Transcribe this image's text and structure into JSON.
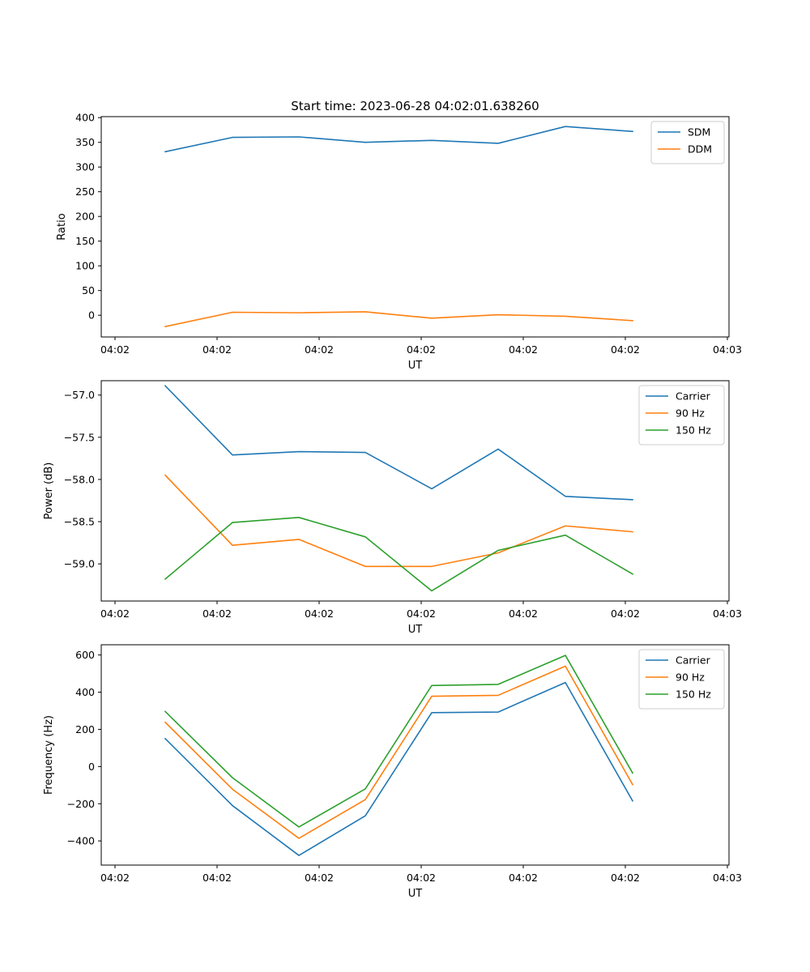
{
  "figure": {
    "title": "Start time: 2023-06-28 04:02:01.638260"
  },
  "colors": {
    "blue": "#1f77b4",
    "orange": "#ff7f0e",
    "green": "#2ca02c"
  },
  "chart_data": [
    {
      "type": "line",
      "title": "Start time: 2023-06-28 04:02:01.638260",
      "xlabel": "UT",
      "ylabel": "Ratio",
      "x_tick_labels": [
        "04:02",
        "04:02",
        "04:02",
        "04:02",
        "04:02",
        "04:02",
        "04:03"
      ],
      "y_ticks": [
        0,
        50,
        100,
        150,
        200,
        250,
        300,
        350,
        400
      ],
      "y_tick_labels": [
        "0",
        "50",
        "100",
        "150",
        "200",
        "250",
        "300",
        "350",
        "400"
      ],
      "ylim": [
        -44,
        402
      ],
      "grid": false,
      "legend": "top-right",
      "series": [
        {
          "name": "SDM",
          "color": "#1f77b4",
          "values": [
            331,
            360,
            361,
            350,
            354,
            348,
            382,
            372
          ]
        },
        {
          "name": "DDM",
          "color": "#ff7f0e",
          "values": [
            -23,
            6,
            5,
            7,
            -6,
            1,
            -2,
            -11
          ]
        }
      ]
    },
    {
      "type": "line",
      "xlabel": "UT",
      "ylabel": "Power (dB)",
      "x_tick_labels": [
        "04:02",
        "04:02",
        "04:02",
        "04:02",
        "04:02",
        "04:02",
        "04:03"
      ],
      "y_ticks": [
        -59.0,
        -58.5,
        -58.0,
        -57.5,
        -57.0
      ],
      "y_tick_labels": [
        "−59.0",
        "−58.5",
        "−58.0",
        "−57.5",
        "−57.0"
      ],
      "ylim": [
        -59.44,
        -56.83
      ],
      "grid": false,
      "legend": "top-right",
      "series": [
        {
          "name": "Carrier",
          "color": "#1f77b4",
          "values": [
            -56.89,
            -57.71,
            -57.67,
            -57.68,
            -58.11,
            -57.64,
            -58.2,
            -58.24
          ]
        },
        {
          "name": "90 Hz",
          "color": "#ff7f0e",
          "values": [
            -57.95,
            -58.78,
            -58.71,
            -59.03,
            -59.03,
            -58.87,
            -58.55,
            -58.62
          ]
        },
        {
          "name": "150 Hz",
          "color": "#2ca02c",
          "values": [
            -59.18,
            -58.51,
            -58.45,
            -58.68,
            -59.32,
            -58.84,
            -58.66,
            -59.12
          ]
        }
      ]
    },
    {
      "type": "line",
      "xlabel": "UT",
      "ylabel": "Frequency (Hz)",
      "x_tick_labels": [
        "04:02",
        "04:02",
        "04:02",
        "04:02",
        "04:02",
        "04:02",
        "04:03"
      ],
      "y_ticks": [
        -400,
        -200,
        0,
        200,
        400,
        600
      ],
      "y_tick_labels": [
        "−400",
        "−200",
        "0",
        "200",
        "400",
        "600"
      ],
      "ylim": [
        -530,
        655
      ],
      "grid": false,
      "legend": "top-right",
      "series": [
        {
          "name": "Carrier",
          "color": "#1f77b4",
          "values": [
            150,
            -210,
            -478,
            -265,
            290,
            293,
            452,
            -185
          ]
        },
        {
          "name": "90 Hz",
          "color": "#ff7f0e",
          "values": [
            238,
            -122,
            -386,
            -178,
            378,
            383,
            540,
            -97
          ]
        },
        {
          "name": "150 Hz",
          "color": "#2ca02c",
          "values": [
            296,
            -60,
            -325,
            -120,
            436,
            442,
            598,
            -35
          ]
        }
      ]
    }
  ]
}
